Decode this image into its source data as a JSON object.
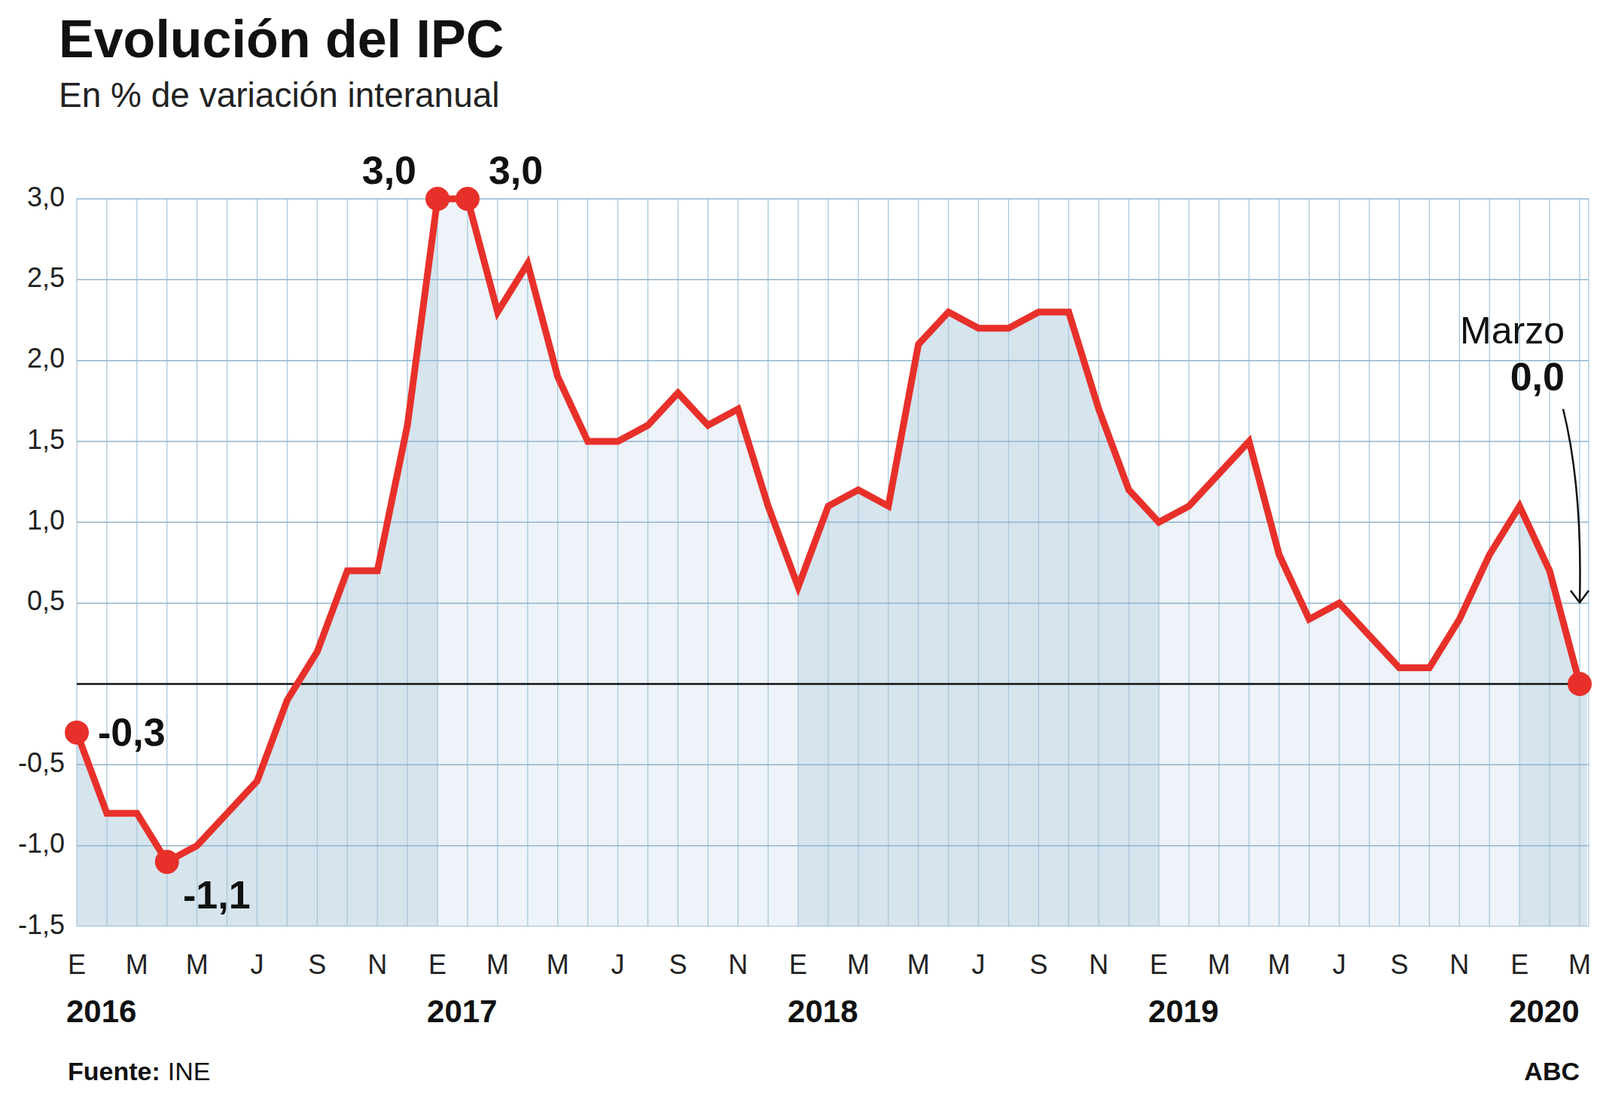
{
  "chart_data": {
    "type": "line",
    "title": "Evolución del IPC",
    "subtitle": "En % de variación interanual",
    "color": "#e8302a",
    "grid": true,
    "categories": [
      "E",
      null,
      "M",
      null,
      "M",
      null,
      "J",
      null,
      "S",
      null,
      "N",
      null,
      "E",
      null,
      "M",
      null,
      "M",
      null,
      "J",
      null,
      "S",
      null,
      "N",
      null,
      "E",
      null,
      "M",
      null,
      "M",
      null,
      "J",
      null,
      "S",
      null,
      "N",
      null,
      "E",
      null,
      "M",
      null,
      "M",
      null,
      "J",
      null,
      "S",
      null,
      "N",
      null,
      "E",
      null,
      "M"
    ],
    "category_groups": [
      "2016",
      null,
      null,
      null,
      null,
      null,
      null,
      null,
      null,
      null,
      null,
      null,
      "2017",
      null,
      null,
      null,
      null,
      null,
      null,
      null,
      null,
      null,
      null,
      null,
      "2018",
      null,
      null,
      null,
      null,
      null,
      null,
      null,
      null,
      null,
      null,
      null,
      "2019",
      null,
      null,
      null,
      null,
      null,
      null,
      null,
      null,
      null,
      null,
      null,
      "2020",
      null,
      null
    ],
    "values": [
      -0.3,
      -0.8,
      -0.8,
      -1.1,
      -1.0,
      -0.8,
      -0.6,
      -0.1,
      0.2,
      0.7,
      0.7,
      1.6,
      3.0,
      3.0,
      2.3,
      2.6,
      1.9,
      1.5,
      1.5,
      1.6,
      1.8,
      1.6,
      1.7,
      1.1,
      0.6,
      1.1,
      1.2,
      1.1,
      2.1,
      2.3,
      2.2,
      2.2,
      2.3,
      2.3,
      1.7,
      1.2,
      1.0,
      1.1,
      1.3,
      1.5,
      0.8,
      0.4,
      0.5,
      0.3,
      0.1,
      0.1,
      0.4,
      0.8,
      1.1,
      0.7,
      0.0
    ],
    "value_labels": [
      "-0,3",
      null,
      null,
      "-1,1",
      null,
      null,
      null,
      null,
      null,
      null,
      null,
      null,
      "3,0",
      "3,0",
      null,
      null,
      null,
      null,
      null,
      null,
      null,
      null,
      null,
      null,
      null,
      null,
      null,
      null,
      null,
      null,
      null,
      null,
      null,
      null,
      null,
      null,
      null,
      null,
      null,
      null,
      null,
      null,
      null,
      null,
      null,
      null,
      null,
      null,
      null,
      null,
      "0,0"
    ],
    "annotations": [
      {
        "text": "Marzo",
        "index": 50
      }
    ],
    "ylim": [
      -1.5,
      3.0
    ],
    "yticks": [
      {
        "value": -1.5,
        "label": "-1,5"
      },
      {
        "value": -1.0,
        "label": "-1,0"
      },
      {
        "value": -0.5,
        "label": "-0,5"
      },
      {
        "value": 0.5,
        "label": "0,5"
      },
      {
        "value": 1.0,
        "label": "1,0"
      },
      {
        "value": 1.5,
        "label": "1,5"
      },
      {
        "value": 2.0,
        "label": "2,0"
      },
      {
        "value": 2.5,
        "label": "2,5"
      },
      {
        "value": 3.0,
        "label": "3,0"
      }
    ],
    "reference_line": 0,
    "source_label": "Fuente:",
    "source": "INE",
    "credit": "ABC"
  }
}
